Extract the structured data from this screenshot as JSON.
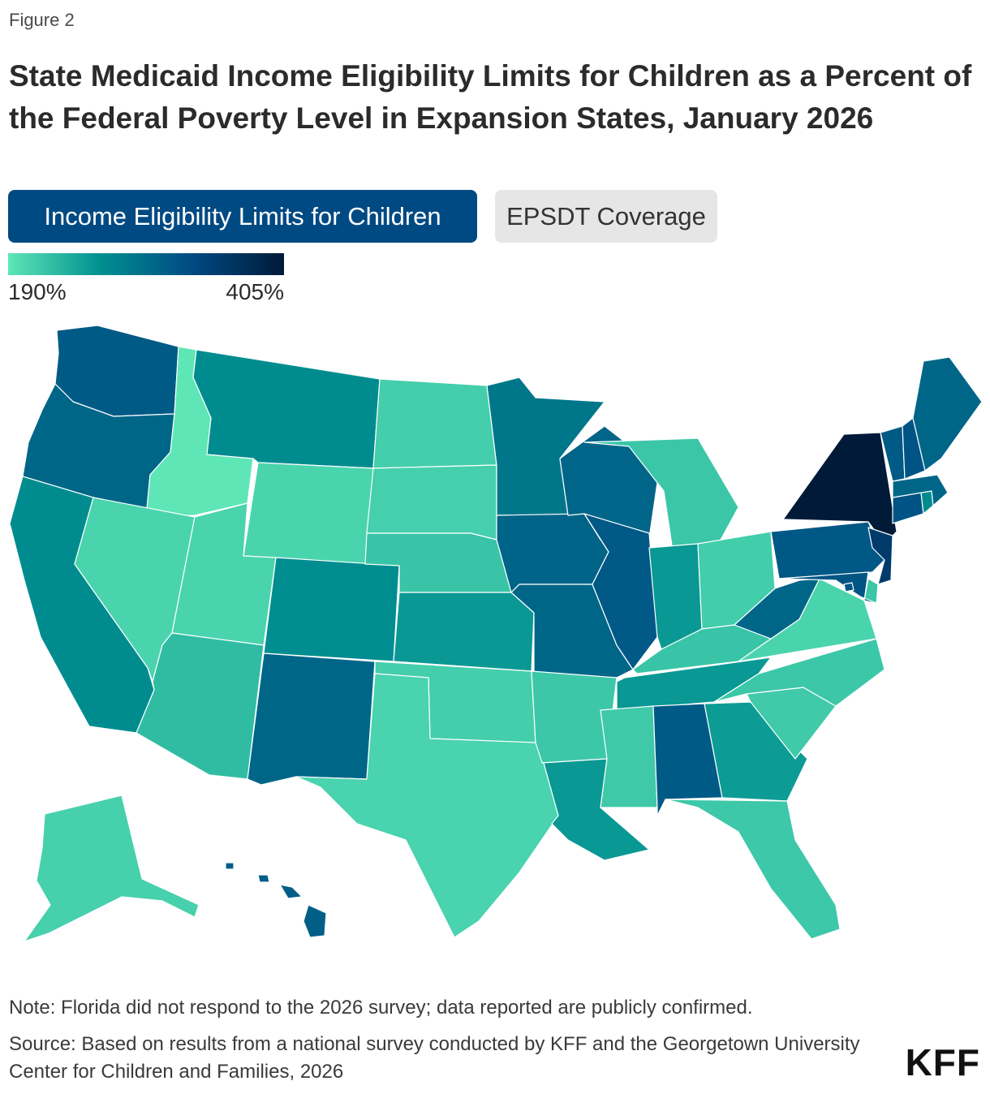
{
  "figure_label": "Figure 2",
  "title": "State Medicaid Income Eligibility Limits for Children as a Percent of the Federal Poverty Level in Expansion States, January 2026",
  "tabs": [
    {
      "label": "Income Eligibility Limits for Children",
      "active": true
    },
    {
      "label": "EPSDT Coverage",
      "active": false
    }
  ],
  "legend": {
    "min_label": "190%",
    "max_label": "405%",
    "colors": [
      "#5ee6b6",
      "#009090",
      "#004a83",
      "#001a38"
    ]
  },
  "chart_data": {
    "type": "choropleth",
    "units": "percent of FPL",
    "range": [
      190,
      405
    ],
    "states": [
      {
        "id": "WA",
        "value": 317
      },
      {
        "id": "OR",
        "value": 305
      },
      {
        "id": "CA",
        "value": 266
      },
      {
        "id": "ID",
        "value": 190
      },
      {
        "id": "NV",
        "value": 205
      },
      {
        "id": "MT",
        "value": 266
      },
      {
        "id": "WY",
        "value": 205
      },
      {
        "id": "UT",
        "value": 205
      },
      {
        "id": "AZ",
        "value": 225
      },
      {
        "id": "CO",
        "value": 265
      },
      {
        "id": "NM",
        "value": 305
      },
      {
        "id": "ND",
        "value": 210
      },
      {
        "id": "SD",
        "value": 209
      },
      {
        "id": "NE",
        "value": 218
      },
      {
        "id": "KS",
        "value": 255
      },
      {
        "id": "OK",
        "value": 210
      },
      {
        "id": "TX",
        "value": 206
      },
      {
        "id": "MN",
        "value": 288
      },
      {
        "id": "IA",
        "value": 307
      },
      {
        "id": "MO",
        "value": 305
      },
      {
        "id": "AR",
        "value": 216
      },
      {
        "id": "LA",
        "value": 255
      },
      {
        "id": "WI",
        "value": 306
      },
      {
        "id": "IL",
        "value": 318
      },
      {
        "id": "MI",
        "value": 217
      },
      {
        "id": "IN",
        "value": 255
      },
      {
        "id": "OH",
        "value": 211
      },
      {
        "id": "KY",
        "value": 218
      },
      {
        "id": "TN",
        "value": 255
      },
      {
        "id": "MS",
        "value": 214
      },
      {
        "id": "AL",
        "value": 317
      },
      {
        "id": "GA",
        "value": 252
      },
      {
        "id": "FL",
        "value": 215
      },
      {
        "id": "SC",
        "value": 213
      },
      {
        "id": "NC",
        "value": 216
      },
      {
        "id": "VA",
        "value": 205
      },
      {
        "id": "WV",
        "value": 305
      },
      {
        "id": "PA",
        "value": 319
      },
      {
        "id": "NY",
        "value": 405
      },
      {
        "id": "NJ",
        "value": 355
      },
      {
        "id": "DE",
        "value": 217
      },
      {
        "id": "MD",
        "value": 322
      },
      {
        "id": "DC",
        "value": 324
      },
      {
        "id": "CT",
        "value": 323
      },
      {
        "id": "RI",
        "value": 266
      },
      {
        "id": "MA",
        "value": 305
      },
      {
        "id": "VT",
        "value": 317
      },
      {
        "id": "NH",
        "value": 323
      },
      {
        "id": "ME",
        "value": 305
      },
      {
        "id": "AK",
        "value": 208
      },
      {
        "id": "HI",
        "value": 313
      }
    ]
  },
  "footer": {
    "note": "Note: Florida did not respond to the 2026 survey; data reported are publicly confirmed.",
    "source": "Source: Based on results from a national survey conducted by KFF and the Georgetown University Center for Children and Families, 2026",
    "logo": "KFF"
  }
}
